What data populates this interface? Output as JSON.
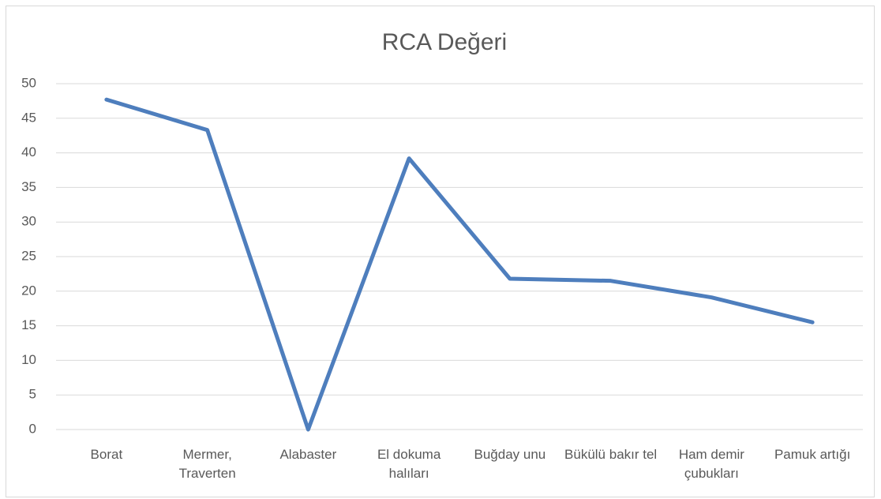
{
  "chart_data": {
    "type": "line",
    "title": "RCA Değeri",
    "categories": [
      "Borat",
      "Mermer, Traverten",
      "Alabaster",
      "El dokuma halıları",
      "Buğday unu",
      "Bükülü bakır tel",
      "Ham demir çubukları",
      "Pamuk artığı"
    ],
    "series": [
      {
        "name": "RCA Değeri",
        "color": "#4e7ebd",
        "values": [
          47.7,
          43.3,
          0,
          39.2,
          21.8,
          21.5,
          19.1,
          15.5
        ]
      }
    ],
    "ylim": [
      0,
      50
    ],
    "yticks": [
      0,
      5,
      10,
      15,
      20,
      25,
      30,
      35,
      40,
      45,
      50
    ],
    "grid": true
  }
}
